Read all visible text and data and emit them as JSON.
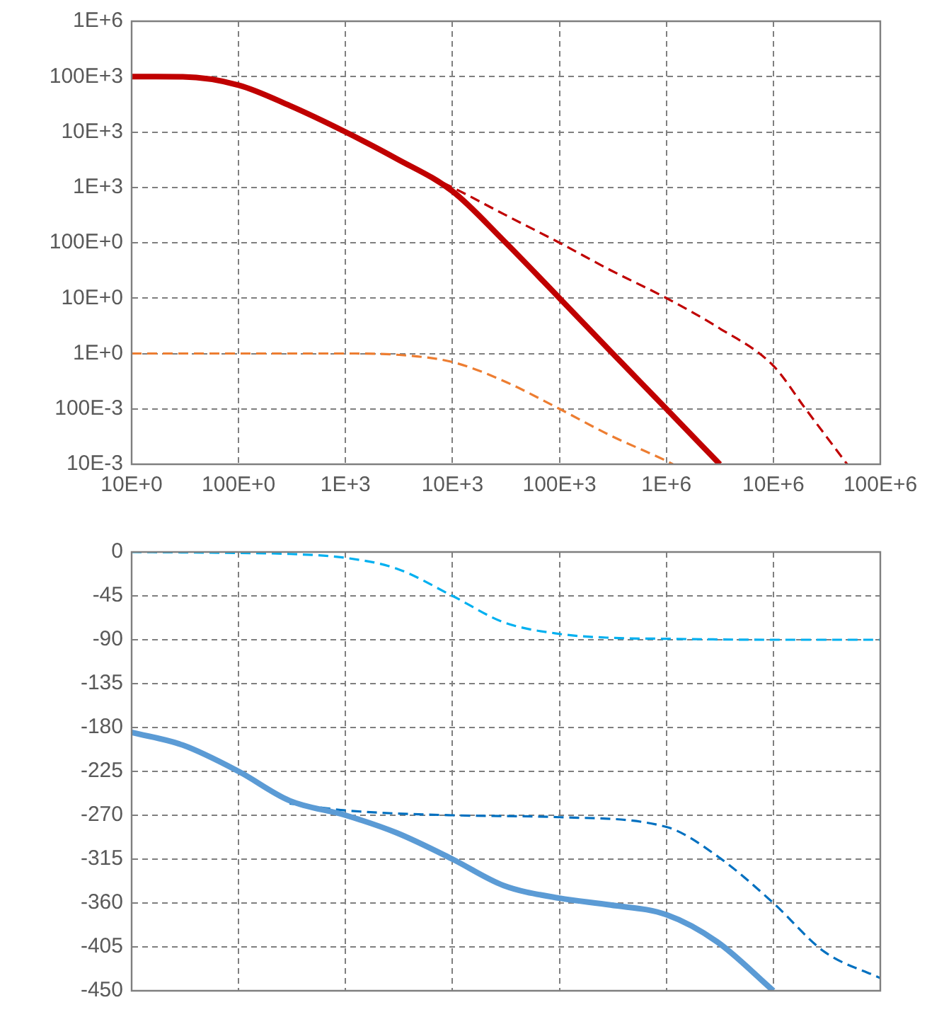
{
  "chart_data": [
    {
      "type": "line",
      "log": "xy",
      "grid": true,
      "marker": "none",
      "xlim": [
        10,
        100000000
      ],
      "ylim": [
        0.01,
        1000000
      ],
      "xticks": [
        {
          "value": 10,
          "label": "10E+0"
        },
        {
          "value": 100,
          "label": "100E+0"
        },
        {
          "value": 1000,
          "label": "1E+3"
        },
        {
          "value": 10000,
          "label": "10E+3"
        },
        {
          "value": 100000,
          "label": "100E+3"
        },
        {
          "value": 1000000,
          "label": "1E+6"
        },
        {
          "value": 10000000,
          "label": "10E+6"
        },
        {
          "value": 100000000,
          "label": "100E+6"
        }
      ],
      "yticks": [
        {
          "value": 0.01,
          "label": "10E-3"
        },
        {
          "value": 0.1,
          "label": "100E-3"
        },
        {
          "value": 1,
          "label": "1E+0"
        },
        {
          "value": 10,
          "label": "10E+0"
        },
        {
          "value": 100,
          "label": "100E+0"
        },
        {
          "value": 1000,
          "label": "1E+3"
        },
        {
          "value": 10000,
          "label": "10E+3"
        },
        {
          "value": 100000,
          "label": "100E+3"
        },
        {
          "value": 1000000,
          "label": "1E+6"
        }
      ],
      "series": [
        {
          "color": "#c00000",
          "line_style": "solid",
          "x": [
            10,
            30,
            100,
            300,
            1000,
            3000,
            10000,
            30000,
            100000,
            300000,
            1000000,
            3162000
          ],
          "values": [
            100000,
            99000,
            70000,
            30000,
            10000,
            3300,
            850,
            110,
            10,
            1.1,
            0.1,
            0.01
          ]
        },
        {
          "color": "#c00000",
          "line_style": "dashed",
          "x": [
            6000,
            10000,
            30000,
            100000,
            300000,
            1000000,
            3000000,
            10000000,
            20000000,
            49000000
          ],
          "values": [
            1600,
            1000,
            330,
            100,
            32,
            10,
            3,
            0.6,
            0.1,
            0.01
          ]
        },
        {
          "color": "#ed7d31",
          "line_style": "dashed",
          "x": [
            10,
            100,
            1000,
            3000,
            10000,
            30000,
            100000,
            300000,
            1000000,
            1150000
          ],
          "values": [
            1,
            1,
            1,
            0.95,
            0.7,
            0.32,
            0.1,
            0.033,
            0.0115,
            0.01
          ]
        }
      ]
    },
    {
      "type": "line",
      "log": "x",
      "grid": true,
      "marker": "none",
      "tick_labels": "y",
      "xlim": [
        10,
        100000000
      ],
      "ylim": [
        -450,
        0
      ],
      "xticks": [
        10,
        100,
        1000,
        10000,
        100000,
        1000000,
        10000000,
        100000000
      ],
      "yticks": [
        0,
        -45,
        -90,
        -135,
        -180,
        -225,
        -270,
        -315,
        -360,
        -405,
        -450
      ],
      "series": [
        {
          "color": "#00b0f0",
          "line_style": "dashed",
          "x": [
            10,
            100,
            300,
            1000,
            3000,
            10000,
            30000,
            100000,
            300000,
            1000000,
            10000000,
            100000000
          ],
          "values": [
            0,
            -1,
            -2,
            -6,
            -17,
            -45,
            -72,
            -84,
            -88,
            -89,
            -90,
            -90
          ]
        },
        {
          "color": "#5b9bd5",
          "line_style": "solid",
          "x": [
            10,
            30,
            100,
            300,
            1000,
            3000,
            10000,
            30000,
            100000,
            300000,
            1000000,
            3000000,
            10000000
          ],
          "values": [
            -185,
            -198,
            -225,
            -255,
            -270,
            -288,
            -315,
            -342,
            -355,
            -362,
            -372,
            -400,
            -450
          ]
        },
        {
          "color": "#0070c0",
          "line_style": "dashed",
          "x": [
            300,
            1000,
            10000,
            100000,
            1000000,
            3000000,
            10000000,
            30000000,
            100000000
          ],
          "values": [
            -258,
            -265,
            -270,
            -272,
            -282,
            -312,
            -360,
            -410,
            -437
          ]
        }
      ]
    }
  ]
}
